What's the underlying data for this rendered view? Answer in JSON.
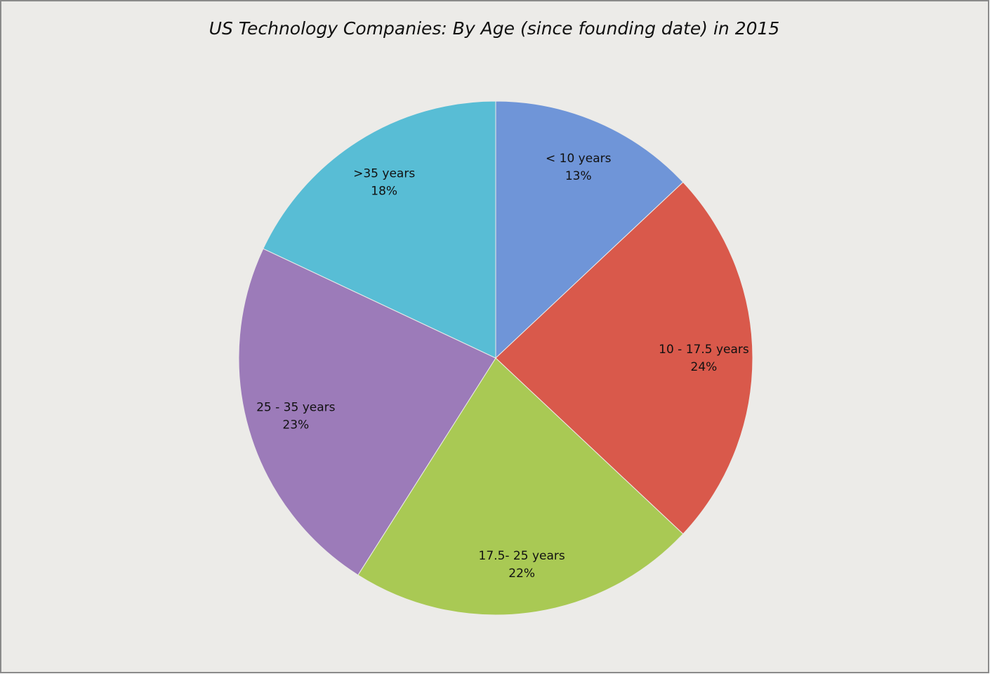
{
  "chart_data": {
    "type": "pie",
    "title": "US Technology Companies: By Age (since founding date) in 2015",
    "categories": [
      "< 10 years",
      "10 - 17.5 years",
      "17.5- 25 years",
      "25 - 35 years",
      ">35 years"
    ],
    "values": [
      13,
      24,
      22,
      23,
      18
    ],
    "value_labels": [
      "13%",
      "24%",
      "22%",
      "23%",
      "18%"
    ],
    "colors": [
      "#6f95d8",
      "#d9594b",
      "#a9c954",
      "#9c7bb9",
      "#58bdd5"
    ]
  }
}
